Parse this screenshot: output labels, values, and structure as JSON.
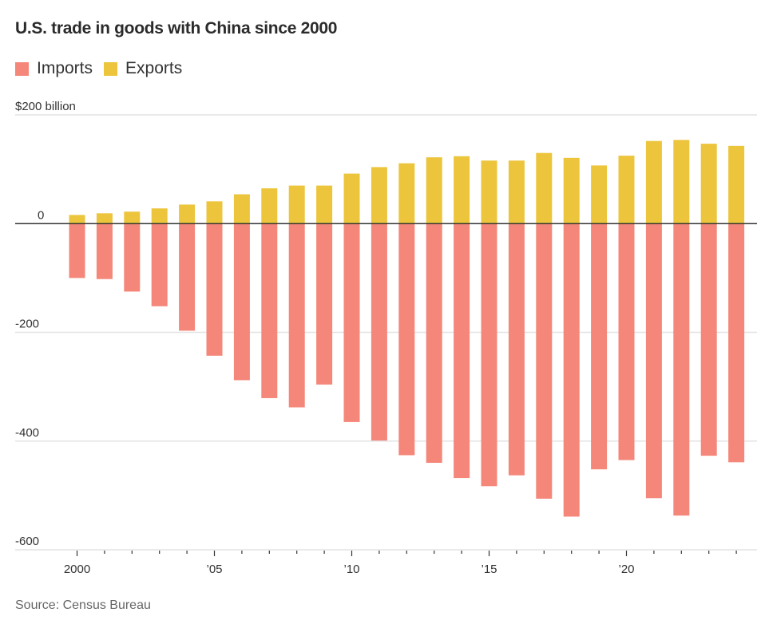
{
  "title": "U.S. trade in goods with China since 2000",
  "legend": [
    {
      "label": "Imports",
      "color": "#F4877A"
    },
    {
      "label": "Exports",
      "color": "#ECC53C"
    }
  ],
  "source": "Source: Census Bureau",
  "chart_data": {
    "type": "bar",
    "title": "U.S. trade in goods with China since 2000",
    "xlabel": "",
    "ylabel": "",
    "unit_label": "$200 billion",
    "ylim": [
      -600,
      200
    ],
    "yticks": [
      200,
      0,
      -200,
      -400,
      -600
    ],
    "ytick_labels": [
      "$200 billion",
      "0",
      "-200",
      "-400",
      "-600"
    ],
    "grid": true,
    "legend_position": "top-left",
    "categories": [
      2000,
      2001,
      2002,
      2003,
      2004,
      2005,
      2006,
      2007,
      2008,
      2009,
      2010,
      2011,
      2012,
      2013,
      2014,
      2015,
      2016,
      2017,
      2018,
      2019,
      2020,
      2021,
      2022,
      2023,
      2024
    ],
    "xtick_labels": [
      {
        "year": 2000,
        "label": "2000"
      },
      {
        "year": 2005,
        "label": " 05"
      },
      {
        "year": 2010,
        "label": "’10"
      },
      {
        "year": 2015,
        "label": "’15"
      },
      {
        "year": 2020,
        "label": "’20"
      }
    ],
    "series": [
      {
        "name": "Imports",
        "color": "#F4877A",
        "sign": "negative",
        "values": [
          -100,
          -102,
          -125,
          -152,
          -197,
          -243,
          -288,
          -321,
          -338,
          -296,
          -365,
          -399,
          -426,
          -440,
          -468,
          -483,
          -463,
          -506,
          -539,
          -452,
          -435,
          -505,
          -537,
          -427,
          -439
        ]
      },
      {
        "name": "Exports",
        "color": "#ECC53C",
        "sign": "positive",
        "values": [
          16,
          19,
          22,
          28,
          35,
          41,
          54,
          65,
          70,
          70,
          92,
          104,
          111,
          122,
          124,
          116,
          116,
          130,
          121,
          107,
          125,
          152,
          154,
          147,
          143
        ]
      }
    ]
  }
}
